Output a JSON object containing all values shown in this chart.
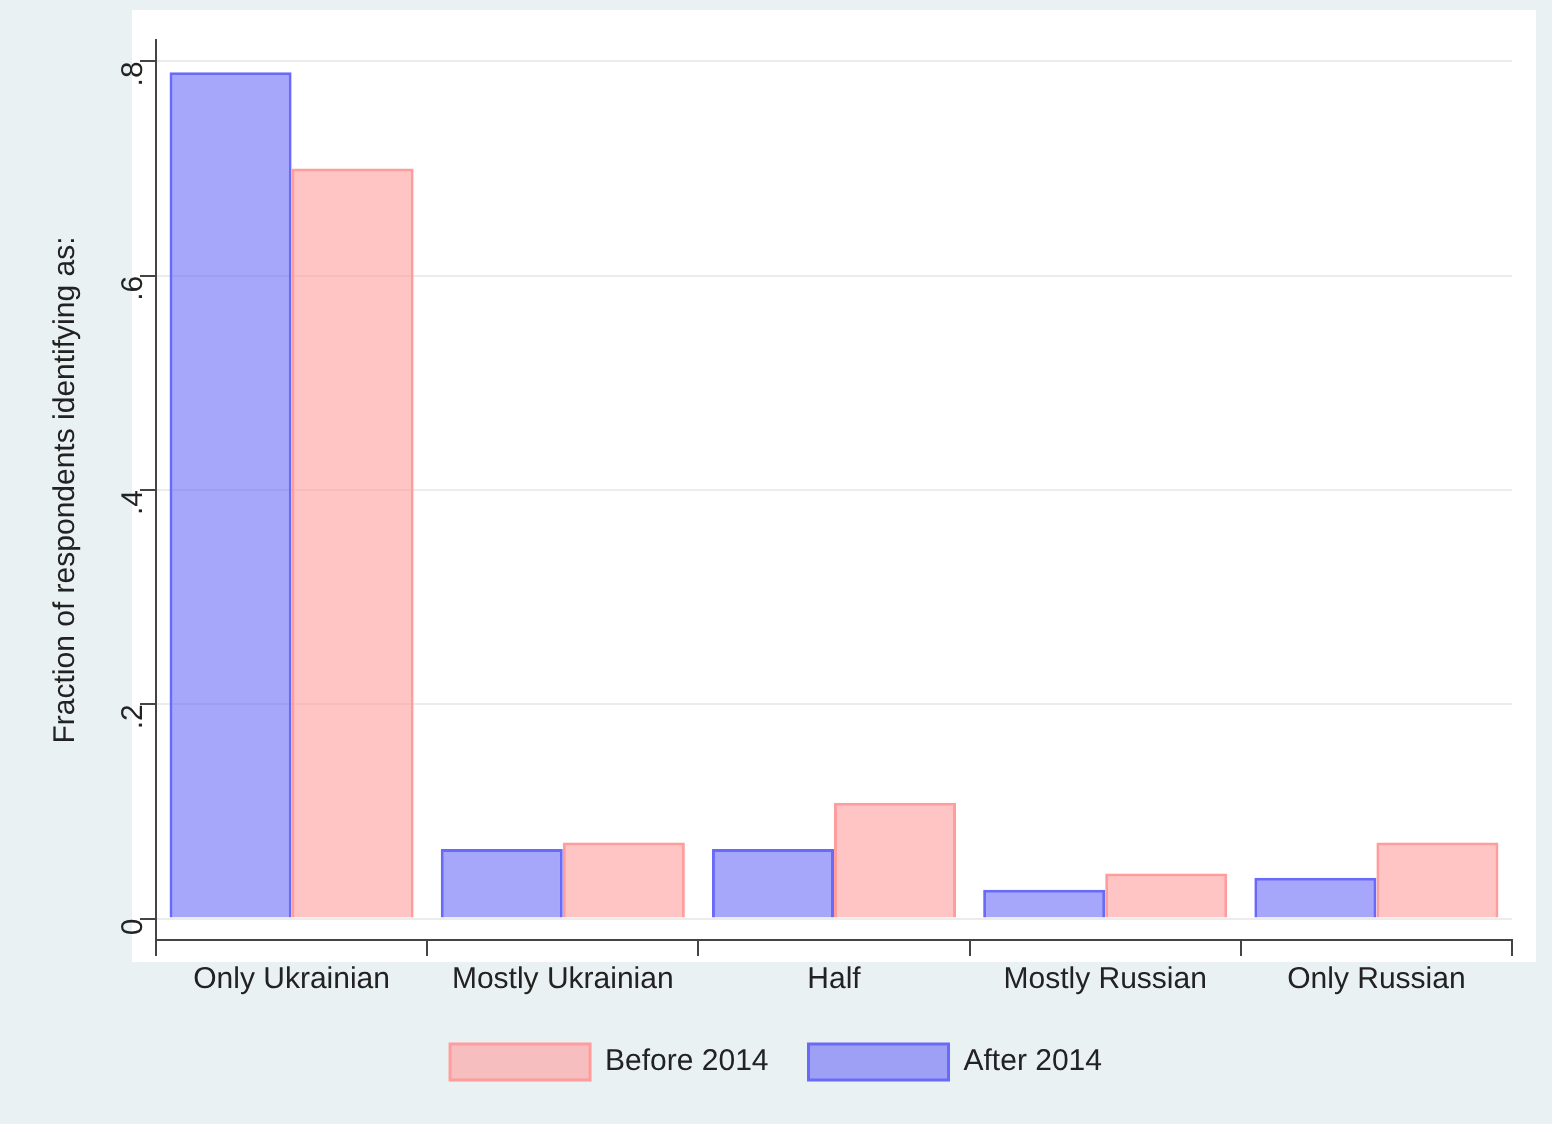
{
  "chart_data": {
    "type": "bar",
    "ylabel": "Fraction of respondents identifying as:",
    "categories": [
      "Only Ukrainian",
      "Mostly Ukrainian",
      "Half",
      "Mostly Russian",
      "Only Russian"
    ],
    "series": [
      {
        "name": "Before 2014",
        "color": "#ff9c9c",
        "values": [
          0.7,
          0.071,
          0.108,
          0.042,
          0.071
        ]
      },
      {
        "name": "After 2014",
        "color": "#6a6af8",
        "values": [
          0.79,
          0.065,
          0.065,
          0.027,
          0.038
        ]
      }
    ],
    "ylim": [
      -0.02,
      0.82
    ],
    "yticks": [
      {
        "value": 0,
        "label": "0"
      },
      {
        "value": 0.2,
        "label": ".2"
      },
      {
        "value": 0.4,
        "label": ".4"
      },
      {
        "value": 0.6,
        "label": ".6"
      },
      {
        "value": 0.8,
        "label": ".8"
      }
    ],
    "grid": "y",
    "legend": "bottom"
  }
}
